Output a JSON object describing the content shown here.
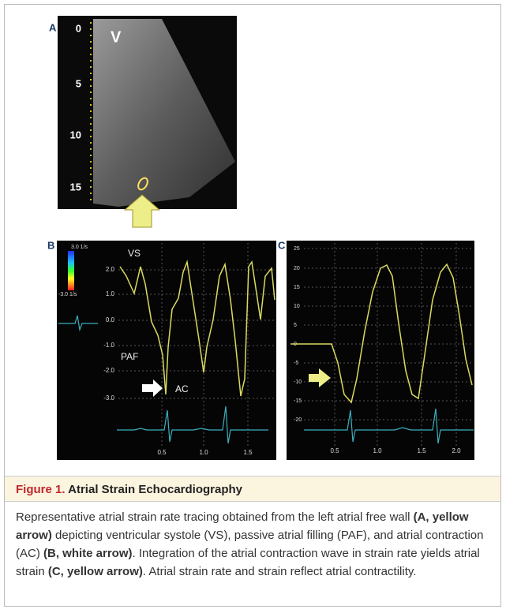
{
  "figure": {
    "panels": [
      {
        "label": "A",
        "depth_labels": [
          "0",
          "5",
          "10",
          "15"
        ],
        "view_label": "V"
      },
      {
        "label": "B",
        "scale_labels": [
          "3.0 1/s",
          "-3.0 1/s"
        ],
        "y_labels": [
          "2.0",
          "1.0",
          "0.0",
          "-1.0",
          "-2.0",
          "-3.0"
        ],
        "x_labels": [
          "0.5",
          "1.0",
          "1.5"
        ],
        "annotations": [
          "VS",
          "PAF",
          "AC"
        ]
      },
      {
        "label": "C",
        "y_labels": [
          "25",
          "20",
          "15",
          "10",
          "5",
          "0",
          "-5",
          "-10",
          "-15",
          "-20"
        ],
        "x_labels": [
          "0.5",
          "1.0",
          "1.5",
          "2.0"
        ]
      }
    ]
  },
  "caption": {
    "number": "Figure 1.",
    "title": "Atrial Strain Echocardiography",
    "body": [
      {
        "text": "Representative atrial strain rate tracing obtained from the left atrial free wall ",
        "bold": false
      },
      {
        "text": "(A, yellow arrow)",
        "bold": true
      },
      {
        "text": " depicting ventricular systole (VS), passive atrial filling (PAF), and atrial contraction (AC) ",
        "bold": false
      },
      {
        "text": "(B, white arrow)",
        "bold": true
      },
      {
        "text": ". Integration of the atrial contraction wave in strain rate yields atrial strain ",
        "bold": false
      },
      {
        "text": "(C, yellow arrow)",
        "bold": true
      },
      {
        "text": ". Atrial strain rate and strain reflect atrial contractility.",
        "bold": false
      }
    ]
  }
}
